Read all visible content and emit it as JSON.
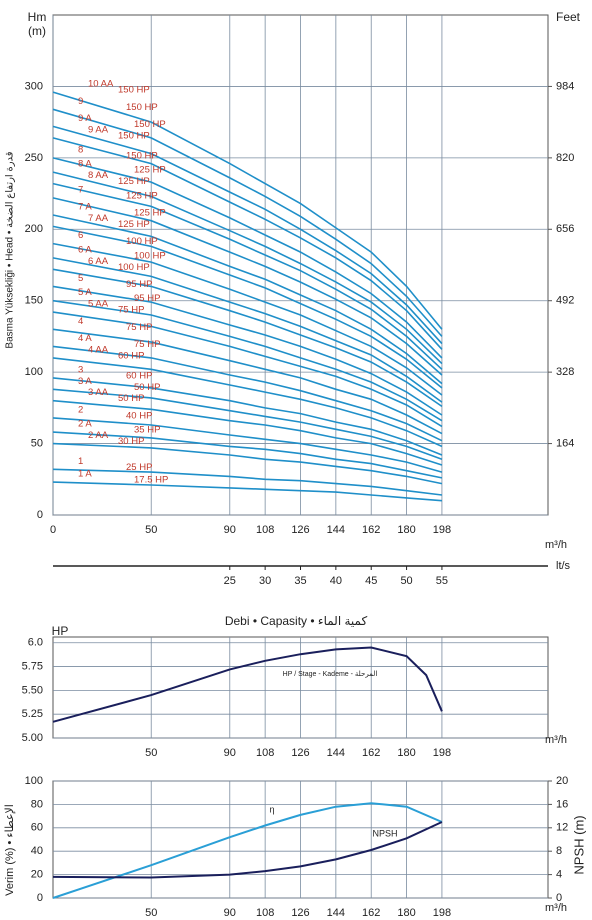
{
  "chart_data": [
    {
      "type": "line",
      "y_unit": "Hm",
      "y_unit_sub": "(m)",
      "y2_unit": "Feet",
      "ylabel": "Basma Yüksekliği • Head • قدرة ارتفاع الضخة",
      "x_unit": "m³/h",
      "x2_unit": "lt/s",
      "xlabel": "Debi • Capasity • كمية الماء",
      "color": "#1f8fc9",
      "label_color": "#c0392b",
      "grid": true,
      "xlim": [
        0,
        252
      ],
      "xticks": [
        0,
        50,
        90,
        108,
        126,
        144,
        162,
        180,
        198
      ],
      "x2lim": [
        0,
        70
      ],
      "x2ticks": [
        25,
        30,
        35,
        40,
        45,
        50,
        55
      ],
      "ylim": [
        0,
        350
      ],
      "yticks": [
        0,
        50,
        100,
        150,
        200,
        250,
        300
      ],
      "y2lim": [
        0,
        1148
      ],
      "y2ticks": [
        164,
        328,
        492,
        656,
        820,
        984
      ],
      "x": [
        0,
        50,
        90,
        108,
        126,
        144,
        162,
        180,
        198
      ],
      "series": [
        {
          "name": "10 AA",
          "hp": "150 HP",
          "values": [
            296,
            275,
            246,
            232,
            218,
            201,
            184,
            160,
            130
          ]
        },
        {
          "name": "9",
          "hp": "150 HP",
          "values": [
            284,
            264,
            236,
            223,
            209,
            193,
            176,
            153,
            125
          ]
        },
        {
          "name": "9 A",
          "hp": "150 HP",
          "values": [
            272,
            253,
            226,
            214,
            200,
            185,
            169,
            147,
            120
          ]
        },
        {
          "name": "9 AA",
          "hp": "150 HP",
          "values": [
            264,
            246,
            219,
            207,
            194,
            180,
            164,
            143,
            116
          ]
        },
        {
          "name": "8",
          "hp": "150 HP",
          "values": [
            250,
            233,
            208,
            196,
            184,
            170,
            155,
            135,
            110
          ]
        },
        {
          "name": "8 A",
          "hp": "125 HP",
          "values": [
            240,
            223,
            199,
            188,
            176,
            163,
            149,
            130,
            106
          ]
        },
        {
          "name": "8 AA",
          "hp": "125 HP",
          "values": [
            232,
            216,
            193,
            182,
            171,
            158,
            144,
            125,
            102
          ]
        },
        {
          "name": "7",
          "hp": "125 HP",
          "values": [
            222,
            206,
            184,
            174,
            163,
            151,
            138,
            120,
            98
          ]
        },
        {
          "name": "7 A",
          "hp": "125 HP",
          "values": [
            210,
            195,
            174,
            165,
            154,
            143,
            130,
            113,
            92
          ]
        },
        {
          "name": "7 AA",
          "hp": "125 HP",
          "values": [
            202,
            188,
            168,
            159,
            148,
            137,
            125,
            109,
            89
          ]
        },
        {
          "name": "6",
          "hp": "100 HP",
          "values": [
            190,
            177,
            158,
            149,
            140,
            129,
            118,
            103,
            84
          ]
        },
        {
          "name": "6 A",
          "hp": "100 HP",
          "values": [
            180,
            167,
            149,
            141,
            132,
            122,
            112,
            97,
            79
          ]
        },
        {
          "name": "6 AA",
          "hp": "100 HP",
          "values": [
            172,
            160,
            143,
            135,
            126,
            117,
            107,
            93,
            76
          ]
        },
        {
          "name": "5",
          "hp": "95 HP",
          "values": [
            160,
            149,
            133,
            126,
            118,
            109,
            99,
            86,
            70
          ]
        },
        {
          "name": "5 A",
          "hp": "95 HP",
          "values": [
            150,
            140,
            125,
            118,
            110,
            102,
            93,
            81,
            66
          ]
        },
        {
          "name": "5 AA",
          "hp": "75 HP",
          "values": [
            142,
            132,
            118,
            111,
            104,
            97,
            88,
            77,
            62
          ]
        },
        {
          "name": "4",
          "hp": "75 HP",
          "values": [
            130,
            121,
            108,
            102,
            96,
            88,
            81,
            70,
            57
          ]
        },
        {
          "name": "4 A",
          "hp": "75 HP",
          "values": [
            118,
            110,
            98,
            93,
            87,
            80,
            73,
            64,
            52
          ]
        },
        {
          "name": "4 AA",
          "hp": "60 HP",
          "values": [
            110,
            102,
            91,
            86,
            81,
            75,
            68,
            59,
            48
          ]
        },
        {
          "name": "3",
          "hp": "60 HP",
          "values": [
            96,
            89,
            80,
            75,
            71,
            65,
            60,
            52,
            42
          ]
        },
        {
          "name": "3 A",
          "hp": "50 HP",
          "values": [
            88,
            82,
            73,
            69,
            65,
            60,
            55,
            48,
            39
          ]
        },
        {
          "name": "3 AA",
          "hp": "50 HP",
          "values": [
            80,
            74,
            66,
            63,
            59,
            54,
            50,
            43,
            35
          ]
        },
        {
          "name": "2",
          "hp": "40 HP",
          "values": [
            68,
            63,
            56,
            53,
            50,
            46,
            42,
            37,
            30
          ]
        },
        {
          "name": "2 A",
          "hp": "35 HP",
          "values": [
            58,
            54,
            48,
            46,
            43,
            39,
            36,
            31,
            26
          ]
        },
        {
          "name": "2 AA",
          "hp": "30 HP",
          "values": [
            50,
            47,
            42,
            39,
            37,
            34,
            31,
            27,
            22
          ]
        },
        {
          "name": "1",
          "hp": "25 HP",
          "values": [
            32,
            30,
            27,
            25,
            24,
            22,
            20,
            17,
            14
          ]
        },
        {
          "name": "1 A",
          "hp": "17.5 HP",
          "values": [
            23,
            21,
            19,
            18,
            17,
            16,
            14,
            12,
            10
          ]
        }
      ]
    },
    {
      "type": "line",
      "y_unit": "HP",
      "annotation": "HP / Stage - Kademe - المرحلة",
      "x_unit": "m³/h",
      "color": "#1a1f5c",
      "grid": true,
      "xlim": [
        0,
        252
      ],
      "xticks": [
        50,
        90,
        108,
        126,
        144,
        162,
        180,
        198
      ],
      "ylim": [
        5,
        6.06
      ],
      "yticks": [
        {
          "value": 5,
          "label": "5.00"
        },
        5.25,
        {
          "value": 5.5,
          "label": "5.50"
        },
        5.75,
        {
          "value": 6,
          "label": "6.0"
        }
      ],
      "x": [
        0,
        50,
        90,
        108,
        126,
        144,
        162,
        180,
        190,
        198
      ],
      "values": [
        5.17,
        5.45,
        5.72,
        5.81,
        5.88,
        5.93,
        5.95,
        5.86,
        5.66,
        5.28
      ]
    },
    {
      "type": "line",
      "ylabel": "Verim (%) • الإعطاء",
      "y2label": "NPSH (m)",
      "x_unit": "m³/h",
      "grid": true,
      "xlim": [
        0,
        252
      ],
      "xticks": [
        50,
        90,
        108,
        126,
        144,
        162,
        180,
        198
      ],
      "ylim": [
        0,
        100
      ],
      "yticks": [
        0,
        20,
        40,
        60,
        80,
        100
      ],
      "y2lim": [
        0,
        20
      ],
      "y2ticks": [
        0,
        4,
        8,
        12,
        16,
        20
      ],
      "x": [
        0,
        50,
        90,
        108,
        126,
        144,
        162,
        180,
        198
      ],
      "series": [
        {
          "name": "η",
          "color": "#2a9fd6",
          "axis": "y",
          "values": [
            0,
            28,
            52,
            62,
            71,
            78,
            81,
            78,
            65
          ]
        },
        {
          "name": "NPSH",
          "color": "#1a1f5c",
          "axis": "y2",
          "values": [
            3.6,
            3.5,
            4.0,
            4.6,
            5.4,
            6.6,
            8.2,
            10.2,
            13.0
          ]
        }
      ]
    }
  ]
}
